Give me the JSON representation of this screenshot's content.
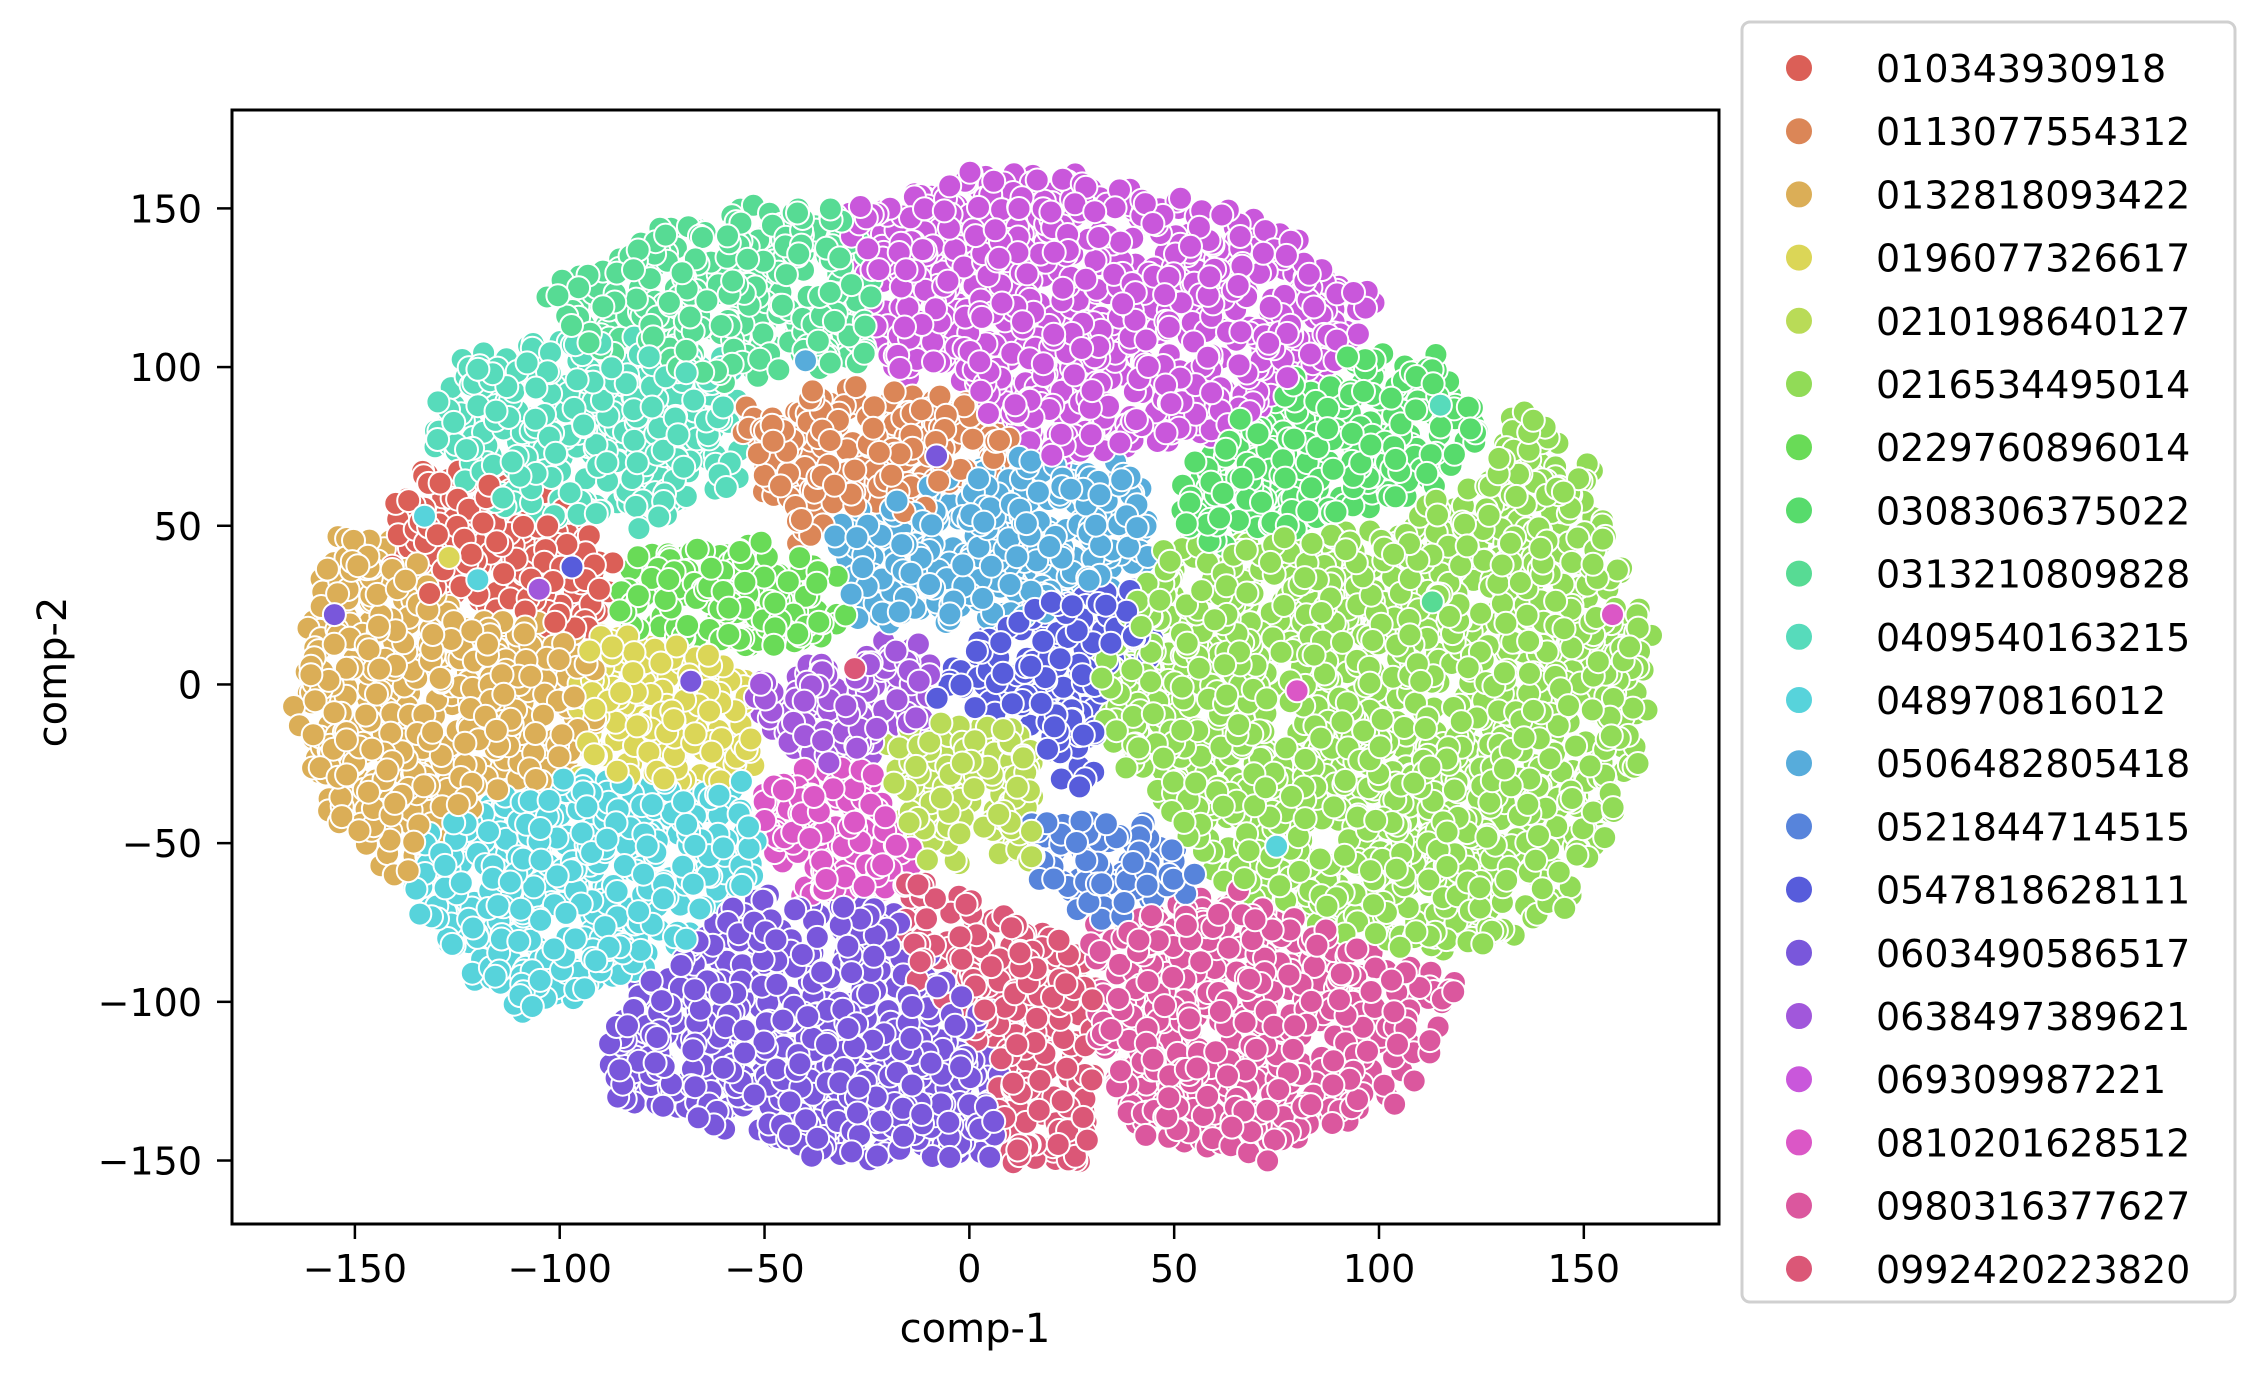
{
  "chart_data": {
    "type": "scatter",
    "title": "",
    "xlabel": "comp-1",
    "ylabel": "comp-2",
    "xlim": [
      -180,
      183
    ],
    "ylim": [
      -170,
      181
    ],
    "xticks": [
      -150,
      -100,
      -50,
      0,
      50,
      100,
      150
    ],
    "yticks": [
      -150,
      -100,
      -50,
      0,
      50,
      100,
      150
    ],
    "xtick_labels": [
      "−150",
      "−100",
      "−50",
      "0",
      "50",
      "100",
      "150"
    ],
    "ytick_labels": [
      "−150",
      "−100",
      "−50",
      "0",
      "50",
      "100",
      "150"
    ],
    "grid": false,
    "legend_placement": "outside-right",
    "series": [
      {
        "name": "010343930918",
        "color": "#db5f57",
        "region": [
          [
            -140,
            65
          ],
          [
            -120,
            70
          ],
          [
            -95,
            55
          ],
          [
            -85,
            35
          ],
          [
            -95,
            15
          ],
          [
            -120,
            25
          ],
          [
            -140,
            30
          ]
        ]
      },
      {
        "name": "0113077554312",
        "color": "#db8657",
        "region": [
          [
            -55,
            85
          ],
          [
            -25,
            95
          ],
          [
            10,
            85
          ],
          [
            10,
            70
          ],
          [
            -15,
            55
          ],
          [
            -40,
            45
          ],
          [
            -50,
            60
          ]
        ]
      },
      {
        "name": "0132818093422",
        "color": "#dbae57",
        "region": [
          [
            -155,
            48
          ],
          [
            -140,
            45
          ],
          [
            -120,
            20
          ],
          [
            -95,
            20
          ],
          [
            -90,
            -10
          ],
          [
            -100,
            -30
          ],
          [
            -125,
            -40
          ],
          [
            -140,
            -65
          ],
          [
            -155,
            -40
          ],
          [
            -165,
            -10
          ],
          [
            -160,
            20
          ]
        ]
      },
      {
        "name": "0196077326617",
        "color": "#dbd657",
        "region": [
          [
            -95,
            15
          ],
          [
            -75,
            15
          ],
          [
            -55,
            5
          ],
          [
            -50,
            -25
          ],
          [
            -70,
            -35
          ],
          [
            -95,
            -30
          ]
        ]
      },
      {
        "name": "0210198640127",
        "color": "#b9db57",
        "region": [
          [
            -20,
            -15
          ],
          [
            10,
            -10
          ],
          [
            20,
            -30
          ],
          [
            15,
            -55
          ],
          [
            -10,
            -55
          ],
          [
            -20,
            -35
          ]
        ]
      },
      {
        "name": "0216534495014",
        "color": "#91db57",
        "region": [
          [
            40,
            40
          ],
          [
            100,
            50
          ],
          [
            125,
            65
          ],
          [
            135,
            90
          ],
          [
            150,
            70
          ],
          [
            165,
            20
          ],
          [
            165,
            -20
          ],
          [
            145,
            -70
          ],
          [
            120,
            -85
          ],
          [
            90,
            -80
          ],
          [
            60,
            -60
          ],
          [
            40,
            -30
          ],
          [
            30,
            0
          ]
        ]
      },
      {
        "name": "0229760896014",
        "color": "#69db57",
        "region": [
          [
            -85,
            40
          ],
          [
            -55,
            45
          ],
          [
            -30,
            35
          ],
          [
            -30,
            15
          ],
          [
            -55,
            10
          ],
          [
            -85,
            20
          ]
        ]
      },
      {
        "name": "0308306375022",
        "color": "#57db6c",
        "region": [
          [
            55,
            70
          ],
          [
            80,
            100
          ],
          [
            115,
            105
          ],
          [
            125,
            80
          ],
          [
            110,
            60
          ],
          [
            80,
            50
          ],
          [
            50,
            40
          ]
        ]
      },
      {
        "name": "0313210809828",
        "color": "#57db94",
        "region": [
          [
            -105,
            120
          ],
          [
            -75,
            145
          ],
          [
            -40,
            152
          ],
          [
            -25,
            145
          ],
          [
            -25,
            100
          ],
          [
            -60,
            95
          ],
          [
            -95,
            105
          ]
        ]
      },
      {
        "name": "0409540163215",
        "color": "#57dbbb",
        "region": [
          [
            -135,
            80
          ],
          [
            -120,
            105
          ],
          [
            -90,
            110
          ],
          [
            -60,
            105
          ],
          [
            -55,
            65
          ],
          [
            -80,
            50
          ],
          [
            -115,
            55
          ]
        ]
      },
      {
        "name": "048970816012",
        "color": "#57d3db",
        "region": [
          [
            -135,
            -50
          ],
          [
            -110,
            -30
          ],
          [
            -75,
            -30
          ],
          [
            -55,
            -30
          ],
          [
            -50,
            -60
          ],
          [
            -80,
            -90
          ],
          [
            -110,
            -105
          ],
          [
            -135,
            -75
          ]
        ]
      },
      {
        "name": "0506482805418",
        "color": "#57acdb",
        "region": [
          [
            -30,
            50
          ],
          [
            0,
            70
          ],
          [
            40,
            70
          ],
          [
            45,
            40
          ],
          [
            30,
            25
          ],
          [
            5,
            20
          ],
          [
            -25,
            20
          ],
          [
            -35,
            35
          ]
        ]
      },
      {
        "name": "0521844714515",
        "color": "#5784db",
        "region": [
          [
            15,
            -40
          ],
          [
            45,
            -45
          ],
          [
            60,
            -65
          ],
          [
            30,
            -75
          ],
          [
            15,
            -60
          ]
        ]
      },
      {
        "name": "0547818628111",
        "color": "#575cdb",
        "region": [
          [
            10,
            25
          ],
          [
            40,
            35
          ],
          [
            50,
            15
          ],
          [
            30,
            0
          ],
          [
            35,
            -25
          ],
          [
            25,
            -35
          ],
          [
            15,
            -10
          ],
          [
            -10,
            -5
          ],
          [
            0,
            10
          ]
        ]
      },
      {
        "name": "0603490586517",
        "color": "#7957db",
        "region": [
          [
            -90,
            -110
          ],
          [
            -70,
            -80
          ],
          [
            -50,
            -65
          ],
          [
            -20,
            -70
          ],
          [
            0,
            -90
          ],
          [
            10,
            -120
          ],
          [
            5,
            -150
          ],
          [
            -30,
            -150
          ],
          [
            -60,
            -140
          ],
          [
            -85,
            -130
          ]
        ]
      },
      {
        "name": "0638497389621",
        "color": "#a157db",
        "region": [
          [
            -55,
            0
          ],
          [
            -30,
            10
          ],
          [
            -10,
            15
          ],
          [
            -10,
            -15
          ],
          [
            -30,
            -25
          ],
          [
            -50,
            -20
          ]
        ]
      },
      {
        "name": "069309987221",
        "color": "#c957db",
        "region": [
          [
            -30,
            150
          ],
          [
            10,
            165
          ],
          [
            50,
            155
          ],
          [
            80,
            140
          ],
          [
            100,
            120
          ],
          [
            90,
            100
          ],
          [
            60,
            80
          ],
          [
            20,
            70
          ],
          [
            0,
            90
          ],
          [
            -20,
            100
          ],
          [
            -25,
            130
          ]
        ]
      },
      {
        "name": "0810201628512",
        "color": "#db57c6",
        "region": [
          [
            -50,
            -30
          ],
          [
            -25,
            -25
          ],
          [
            -15,
            -45
          ],
          [
            -15,
            -65
          ],
          [
            -40,
            -70
          ],
          [
            -50,
            -55
          ]
        ]
      },
      {
        "name": "0980316377627",
        "color": "#db579e",
        "region": [
          [
            30,
            -75
          ],
          [
            65,
            -65
          ],
          [
            90,
            -80
          ],
          [
            120,
            -95
          ],
          [
            105,
            -130
          ],
          [
            70,
            -150
          ],
          [
            40,
            -140
          ],
          [
            30,
            -110
          ]
        ]
      },
      {
        "name": "0992420223820",
        "color": "#db5777",
        "region": [
          [
            -15,
            -60
          ],
          [
            15,
            -75
          ],
          [
            30,
            -90
          ],
          [
            30,
            -150
          ],
          [
            10,
            -150
          ],
          [
            5,
            -120
          ],
          [
            -10,
            -95
          ],
          [
            -20,
            -80
          ]
        ]
      }
    ],
    "outliers": [
      {
        "series": 14,
        "x": -155,
        "y": 22
      },
      {
        "series": 17,
        "x": 157,
        "y": 22
      },
      {
        "series": 17,
        "x": 80,
        "y": -2
      },
      {
        "series": 11,
        "x": -40,
        "y": 102
      },
      {
        "series": 9,
        "x": 115,
        "y": 88
      },
      {
        "series": 10,
        "x": -133,
        "y": 53
      },
      {
        "series": 3,
        "x": -127,
        "y": 40
      },
      {
        "series": 10,
        "x": -120,
        "y": 33
      },
      {
        "series": 13,
        "x": -97,
        "y": 37
      },
      {
        "series": 15,
        "x": -105,
        "y": 30
      },
      {
        "series": 14,
        "x": -68,
        "y": 1
      },
      {
        "series": 19,
        "x": -28,
        "y": 5
      },
      {
        "series": 14,
        "x": -8,
        "y": 72
      },
      {
        "series": 10,
        "x": 75,
        "y": -51
      },
      {
        "series": 8,
        "x": 113,
        "y": 26
      }
    ]
  }
}
